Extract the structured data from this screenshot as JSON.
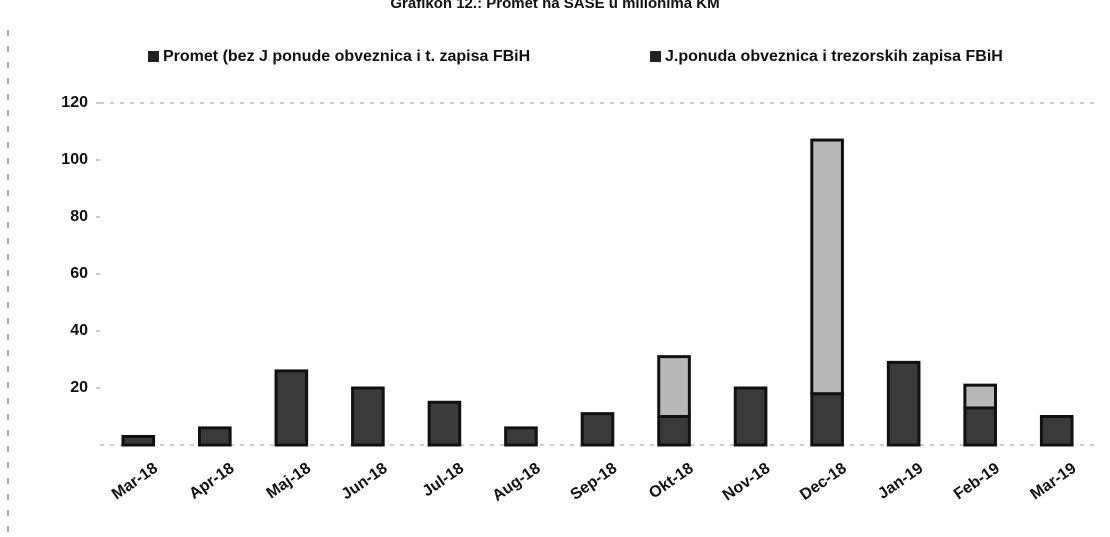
{
  "chart_data": {
    "type": "stacked_bar",
    "title": "Grafikon 12.: Promet na SASE u milionima KM",
    "categories": [
      "Mar-18",
      "Apr-18",
      "Maj-18",
      "Jun-18",
      "Jul-18",
      "Aug-18",
      "Sep-18",
      "Okt-18",
      "Nov-18",
      "Dec-18",
      "Jan-19",
      "Feb-19",
      "Mar-19"
    ],
    "series": [
      {
        "name": "Promet (bez J ponude obveznica i t. zapisa FBiH",
        "color": "#3a3a3a",
        "values": [
          3,
          6,
          26,
          20,
          15,
          6,
          11,
          10,
          20,
          18,
          29,
          13,
          10
        ]
      },
      {
        "name": "J.ponuda obveznica i trezorskih zapisa FBiH",
        "color": "#b8b8b8",
        "values": [
          0,
          0,
          0,
          0,
          0,
          0,
          0,
          21,
          0,
          89,
          0,
          8,
          0
        ]
      }
    ],
    "ylim": [
      0,
      120
    ],
    "yticks": [
      20,
      40,
      60,
      80,
      100,
      120
    ],
    "grid": false
  }
}
